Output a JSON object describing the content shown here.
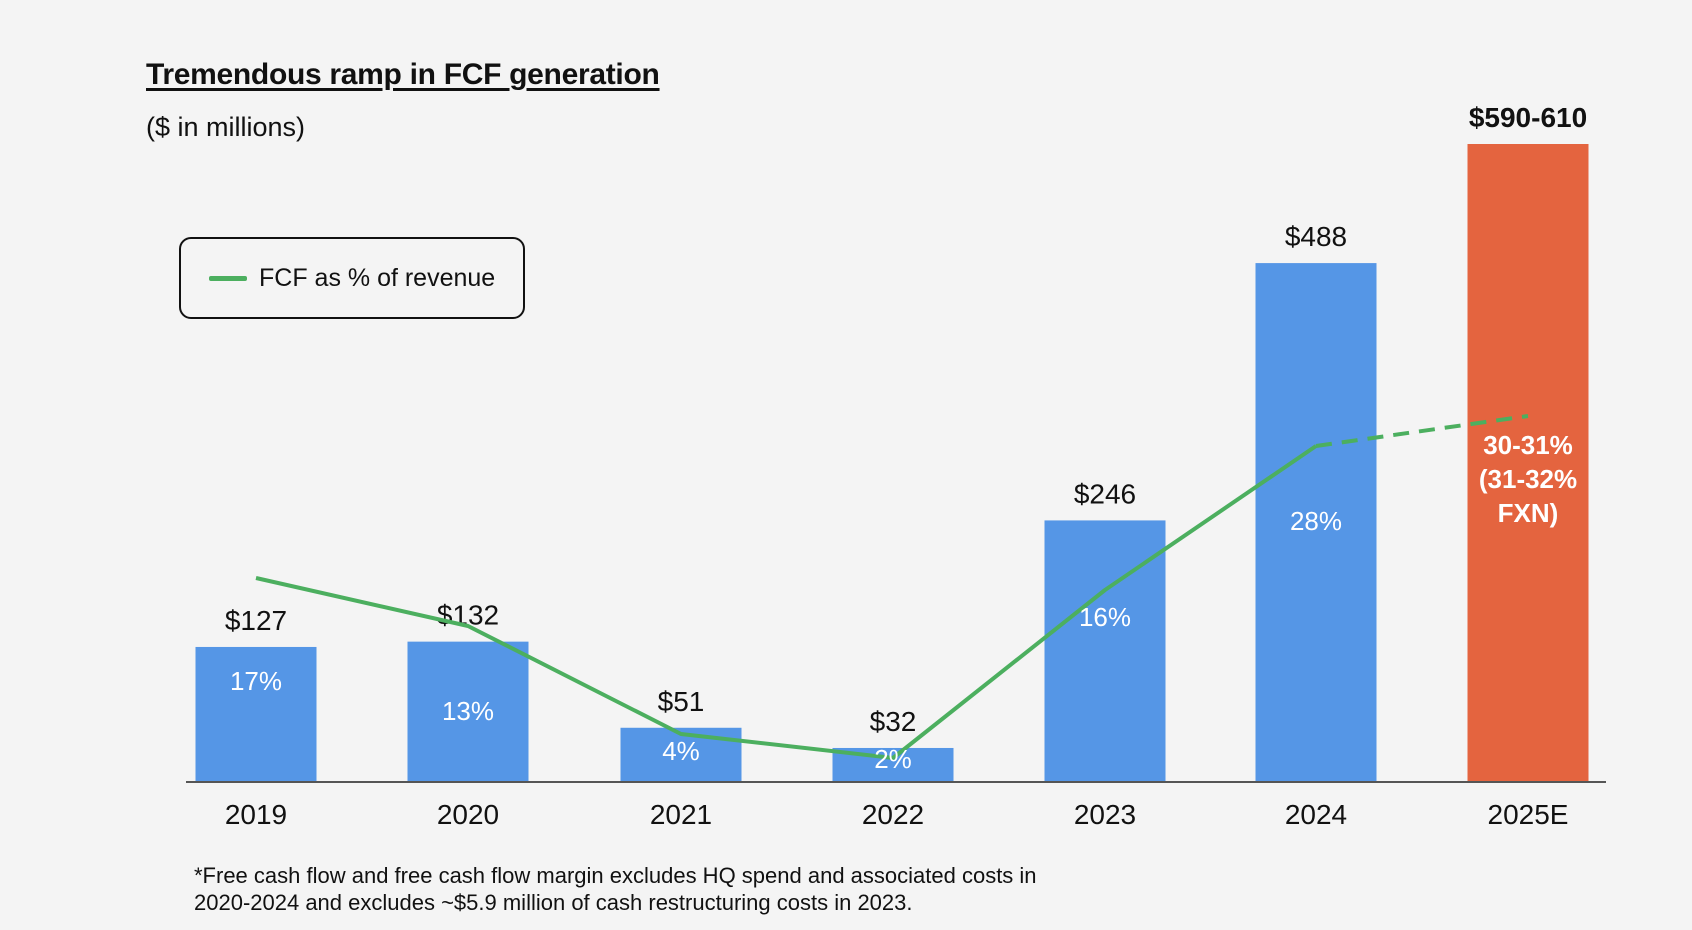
{
  "chart_data": {
    "type": "bar",
    "title": "Tremendous ramp in FCF generation",
    "subtitle": "($ in millions)",
    "categories": [
      "2019",
      "2020",
      "2021",
      "2022",
      "2023",
      "2024",
      "2025E"
    ],
    "values": [
      127,
      132,
      51,
      32,
      246,
      488,
      600
    ],
    "value_labels": [
      "$127",
      "$132",
      "$51",
      "$32",
      "$246",
      "$488",
      "$590-610"
    ],
    "bar_colors": [
      "#5596e6",
      "#5596e6",
      "#5596e6",
      "#5596e6",
      "#5596e6",
      "#5596e6",
      "#e4643f"
    ],
    "ylim": [
      0,
      600
    ],
    "grid": false,
    "legend": {
      "position": "top-left",
      "label": "FCF as % of revenue",
      "color": "#4caf5f"
    },
    "series": [
      {
        "name": "FCF as % of revenue",
        "type": "line",
        "color": "#4caf5f",
        "values": [
          17,
          13,
          4,
          2,
          16,
          28,
          30.5
        ],
        "labels": [
          "17%",
          "13%",
          "4%",
          "2%",
          "16%",
          "28%",
          "30-31%\n(31-32%\nFXN)"
        ],
        "projected_from_index": 5,
        "ylim": [
          0,
          50
        ]
      }
    ]
  },
  "footnote": [
    "*Free cash flow and free cash flow margin excludes HQ spend and associated costs in",
    "2020-2024 and excludes ~$5.9 million of cash restructuring costs in 2023."
  ]
}
